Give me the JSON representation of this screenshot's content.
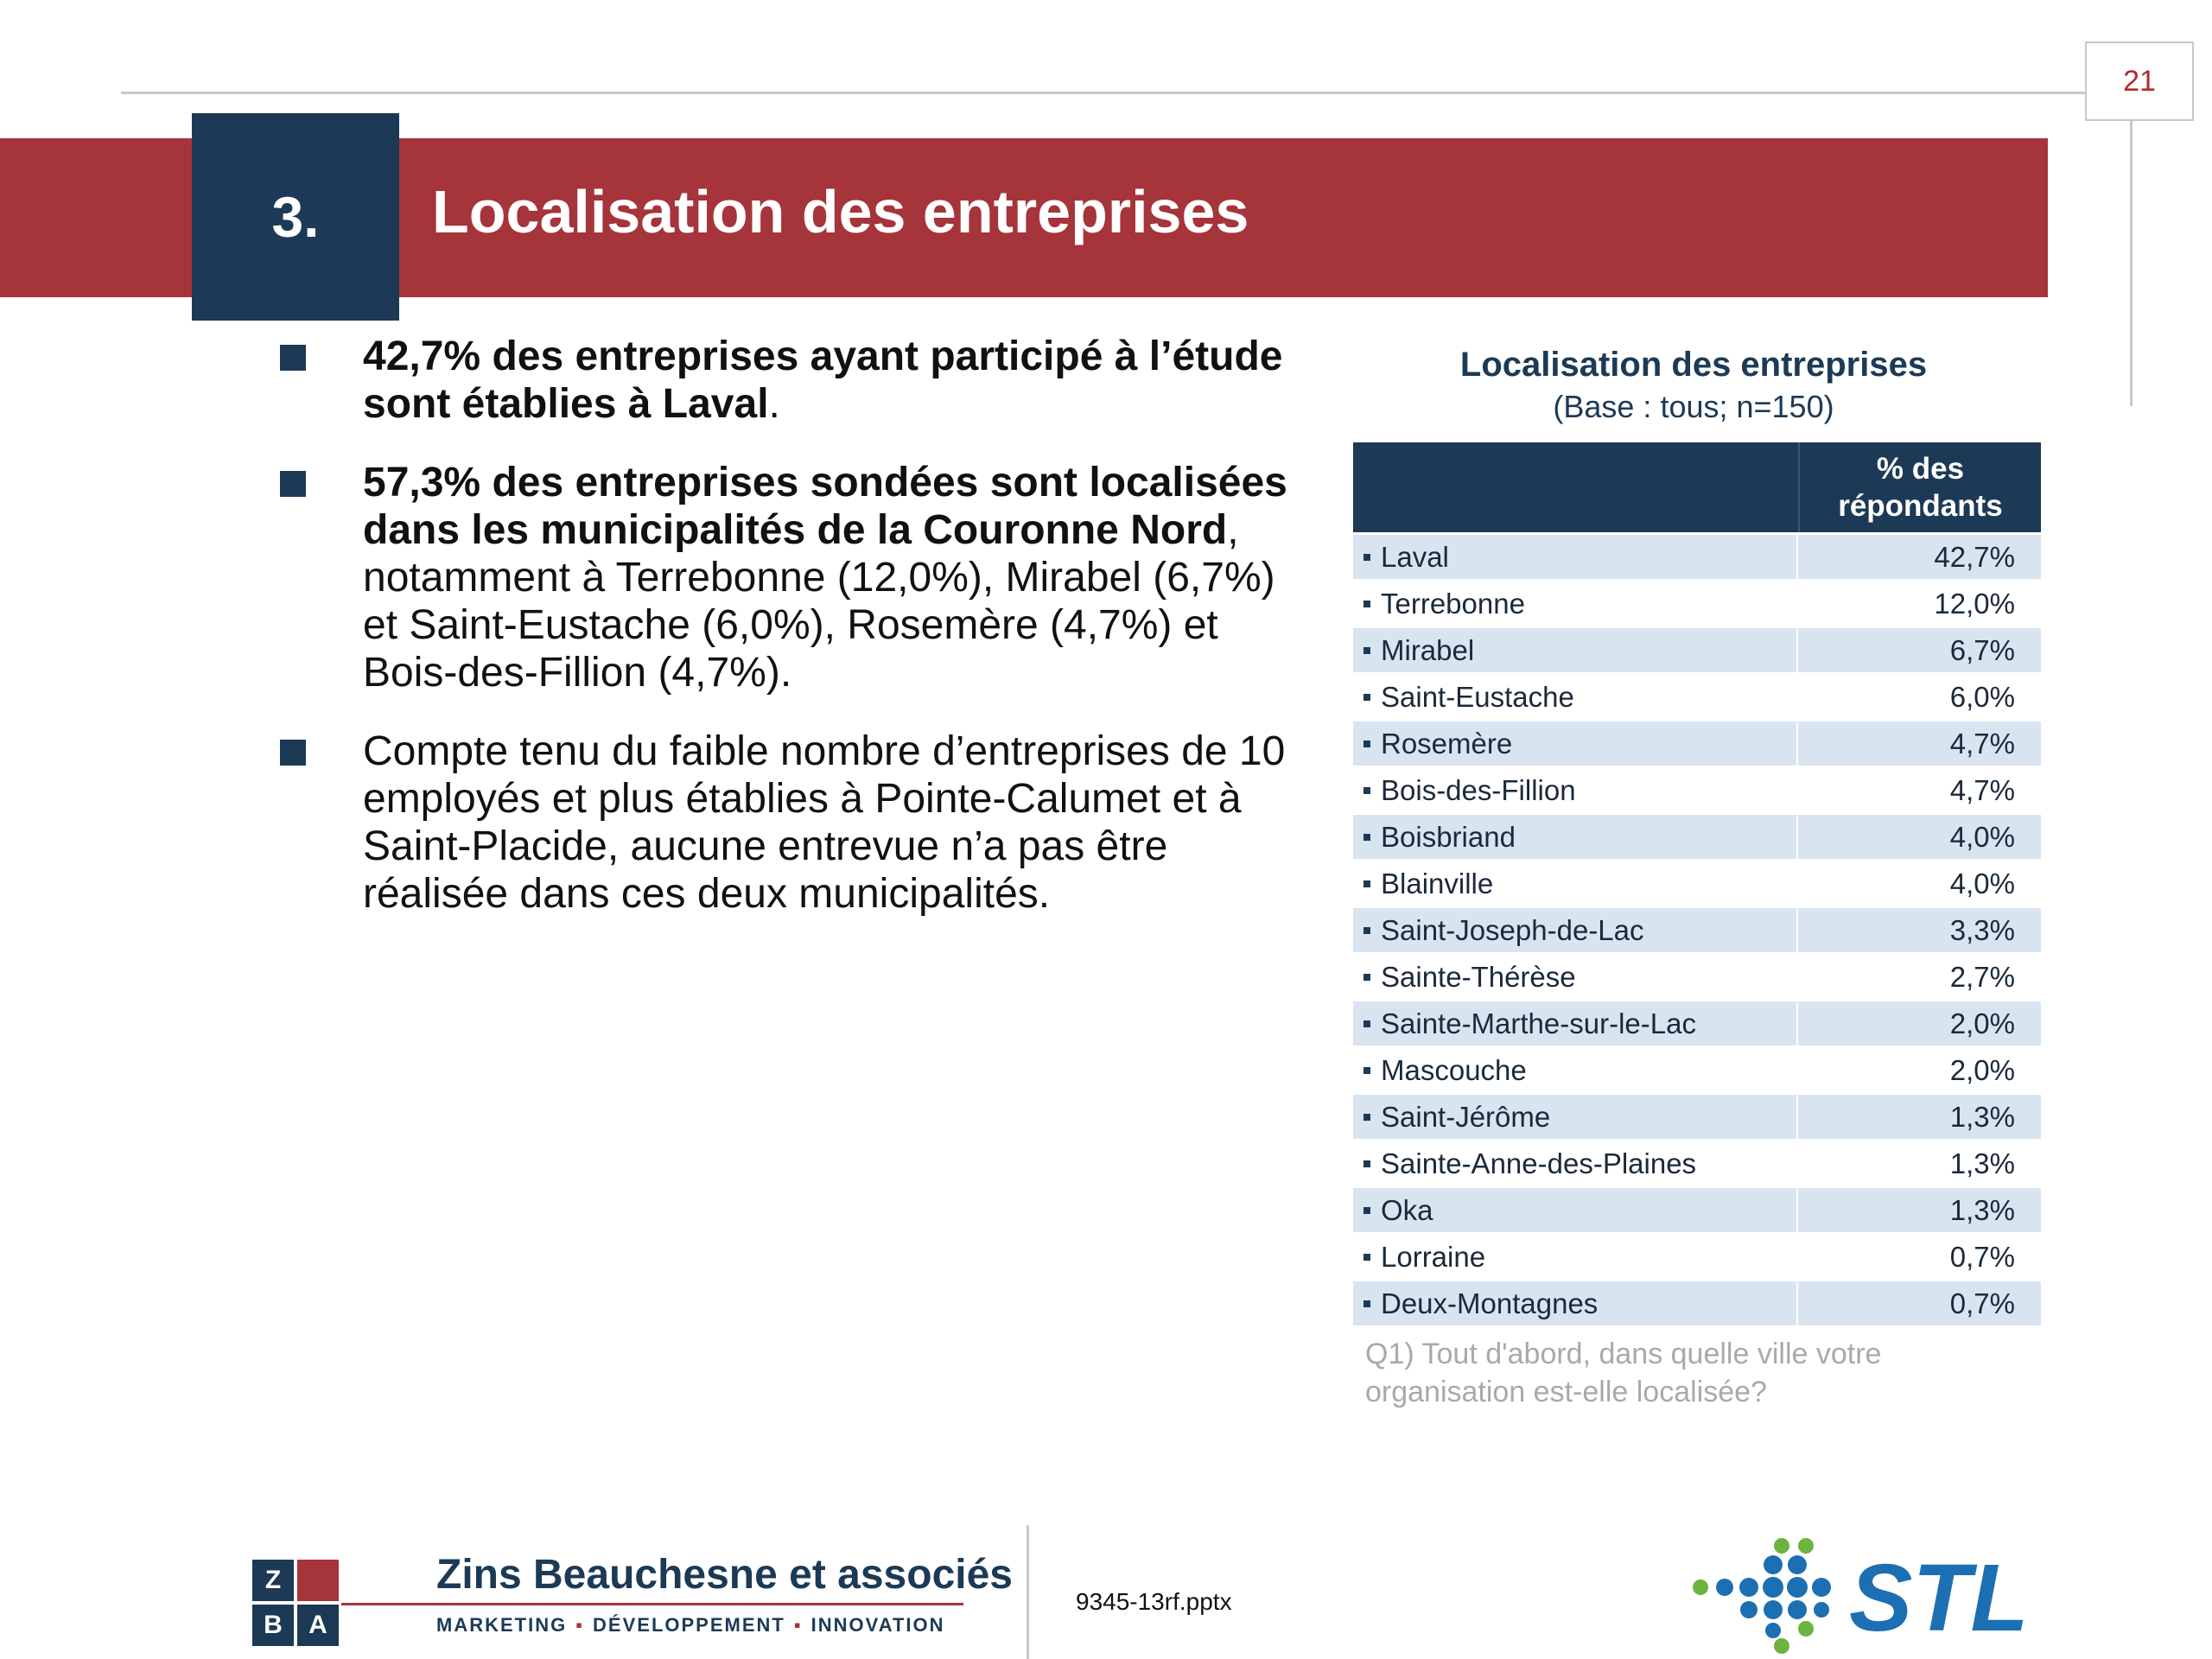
{
  "page_number": "21",
  "section": {
    "number": "3.",
    "title": "Localisation des entreprises"
  },
  "bullets": [
    {
      "bold": "42,7% des entreprises ayant participé à l’étude sont établies à Laval",
      "normal": "."
    },
    {
      "bold": "57,3% des entreprises sondées sont localisées dans les municipalités de la Couronne Nord",
      "normal": ", notamment à Terrebonne (12,0%), Mirabel (6,7%) et Saint-Eustache (6,0%), Rosemère (4,7%) et Bois-des-Fillion (4,7%)."
    },
    {
      "bold": "",
      "normal": "Compte tenu du faible nombre d’entreprises de 10 employés et plus établies à Pointe-Calumet et à Saint-Placide, aucune entrevue n’a pas être réalisée dans ces deux municipalités."
    }
  ],
  "table": {
    "title": "Localisation des entreprises",
    "subtitle": "(Base : tous; n=150)",
    "header": "% des répondants",
    "rows": [
      {
        "label": "Laval",
        "value": "42,7%"
      },
      {
        "label": "Terrebonne",
        "value": "12,0%"
      },
      {
        "label": "Mirabel",
        "value": "6,7%"
      },
      {
        "label": "Saint-Eustache",
        "value": "6,0%"
      },
      {
        "label": "Rosemère",
        "value": "4,7%"
      },
      {
        "label": "Bois-des-Fillion",
        "value": "4,7%"
      },
      {
        "label": "Boisbriand",
        "value": "4,0%"
      },
      {
        "label": "Blainville",
        "value": "4,0%"
      },
      {
        "label": "Saint-Joseph-de-Lac",
        "value": "3,3%"
      },
      {
        "label": "Sainte-Thérèse",
        "value": "2,7%"
      },
      {
        "label": "Sainte-Marthe-sur-le-Lac",
        "value": "2,0%"
      },
      {
        "label": "Mascouche",
        "value": "2,0%"
      },
      {
        "label": "Saint-Jérôme",
        "value": "1,3%"
      },
      {
        "label": "Sainte-Anne-des-Plaines",
        "value": "1,3%"
      },
      {
        "label": "Oka",
        "value": "1,3%"
      },
      {
        "label": "Lorraine",
        "value": "0,7%"
      },
      {
        "label": "Deux-Montagnes",
        "value": "0,7%"
      }
    ],
    "note": "Q1) Tout d'abord, dans quelle ville votre organisation est-elle localisée?"
  },
  "footer": {
    "logo_letters": [
      "Z",
      "",
      "B",
      "A"
    ],
    "company": "Zins Beauchesne et associés",
    "tagline": [
      "MARKETING",
      "DÉVELOPPEMENT",
      "INNOVATION"
    ],
    "filename": "9345-13rf.pptx",
    "partner_logo": "STL"
  },
  "colors": {
    "navy": "#1c3a55",
    "red": "#a6343b",
    "row_alt": "#d9e4f1",
    "stl_blue": "#1d6fb3",
    "stl_green": "#6db33f"
  }
}
